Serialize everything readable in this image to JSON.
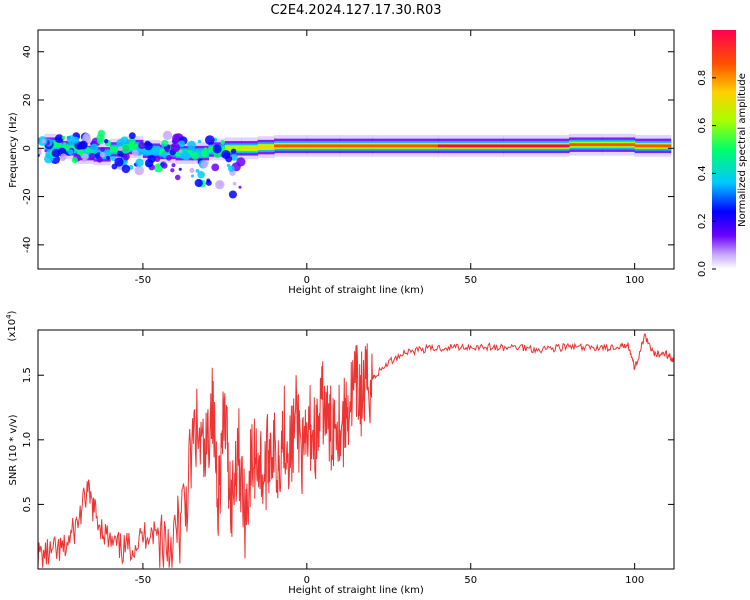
{
  "title": "C2E4.2024.127.17.30.R03",
  "chart_data": [
    {
      "type": "heatmap",
      "xlabel": "Height of straight line (km)",
      "ylabel": "Frequency (Hz)",
      "xlim": [
        -82,
        112
      ],
      "ylim": [
        -50,
        49
      ],
      "xticks": [
        -50,
        0,
        50,
        100
      ],
      "yticks": [
        -40,
        -20,
        0,
        20,
        40
      ],
      "colorbar": {
        "label": "Normalized spectral amplitude",
        "range": [
          0,
          1
        ],
        "ticks": [
          "0.0",
          "0.2",
          "0.4",
          "0.6",
          "0.8"
        ],
        "colors": [
          "#ffffff",
          "#c8a8ff",
          "#6a00ff",
          "#0000ff",
          "#00c8ff",
          "#00ff6a",
          "#a8ff00",
          "#ffd000",
          "#ff5000",
          "#ff0050"
        ]
      },
      "ridge": [
        {
          "x": -80,
          "y": 2,
          "amp": 0.6
        },
        {
          "x": -75,
          "y": 1,
          "amp": 0.55
        },
        {
          "x": -70,
          "y": -1,
          "amp": 0.5
        },
        {
          "x": -65,
          "y": -3,
          "amp": 0.45
        },
        {
          "x": -60,
          "y": -2,
          "amp": 0.5
        },
        {
          "x": -55,
          "y": 1,
          "amp": 0.5
        },
        {
          "x": -50,
          "y": 0,
          "amp": 0.45
        },
        {
          "x": -45,
          "y": -2,
          "amp": 0.5
        },
        {
          "x": -40,
          "y": -1,
          "amp": 0.5
        },
        {
          "x": -35,
          "y": -3,
          "amp": 0.45
        },
        {
          "x": -30,
          "y": -1,
          "amp": 0.55
        },
        {
          "x": -25,
          "y": 0,
          "amp": 0.65
        },
        {
          "x": -20,
          "y": 0,
          "amp": 0.75
        },
        {
          "x": -15,
          "y": 0,
          "amp": 0.8
        },
        {
          "x": -10,
          "y": 1,
          "amp": 0.85
        },
        {
          "x": 0,
          "y": 1,
          "amp": 0.85
        },
        {
          "x": 10,
          "y": 1,
          "amp": 0.85
        },
        {
          "x": 20,
          "y": 1,
          "amp": 0.9
        },
        {
          "x": 40,
          "y": 1,
          "amp": 0.95
        },
        {
          "x": 60,
          "y": 1,
          "amp": 0.95
        },
        {
          "x": 80,
          "y": 1,
          "amp": 0.9
        },
        {
          "x": 90,
          "y": 2,
          "amp": 0.85
        },
        {
          "x": 100,
          "y": 1,
          "amp": 0.85
        },
        {
          "x": 111,
          "y": 1,
          "amp": 0.85
        }
      ]
    },
    {
      "type": "line",
      "xlabel": "Height of straight line (km)",
      "ylabel": "SNR (10 * v/v)",
      "yscale_label": "(x10",
      "yscale_exp": "4",
      "yscale_close": ")",
      "xlim": [
        -82,
        112
      ],
      "ylim": [
        0,
        1.85
      ],
      "xticks": [
        -50,
        0,
        50,
        100
      ],
      "yticks": [
        "0.5",
        "1.0",
        "1.5"
      ],
      "series": [
        {
          "color": "#ee3333",
          "x": [
            -82,
            -78,
            -74,
            -70,
            -67,
            -64,
            -60,
            -56,
            -52,
            -48,
            -44,
            -40,
            -37,
            -34,
            -31,
            -29,
            -27,
            -25,
            -23,
            -21,
            -19,
            -17,
            -15,
            -13,
            -11,
            -9,
            -7,
            -5,
            -3,
            -1,
            1,
            3,
            5,
            7,
            9,
            11,
            13,
            15,
            17,
            19,
            21,
            25,
            30,
            35,
            40,
            45,
            50,
            55,
            60,
            65,
            70,
            75,
            80,
            85,
            90,
            95,
            98,
            100,
            103,
            106,
            109,
            112
          ],
          "y": [
            0.1,
            0.12,
            0.15,
            0.35,
            0.6,
            0.4,
            0.2,
            0.15,
            0.2,
            0.3,
            0.25,
            0.2,
            0.5,
            1.1,
            0.8,
            1.3,
            0.6,
            1.2,
            0.5,
            1.0,
            0.4,
            0.8,
            0.9,
            0.7,
            1.0,
            0.8,
            1.1,
            0.9,
            1.2,
            0.8,
            1.1,
            1.0,
            1.3,
            1.05,
            1.2,
            1.1,
            1.3,
            1.4,
            1.35,
            1.45,
            1.5,
            1.6,
            1.68,
            1.7,
            1.71,
            1.72,
            1.72,
            1.72,
            1.71,
            1.72,
            1.7,
            1.71,
            1.72,
            1.71,
            1.72,
            1.7,
            1.75,
            1.55,
            1.8,
            1.65,
            1.68,
            1.62
          ]
        }
      ]
    }
  ]
}
